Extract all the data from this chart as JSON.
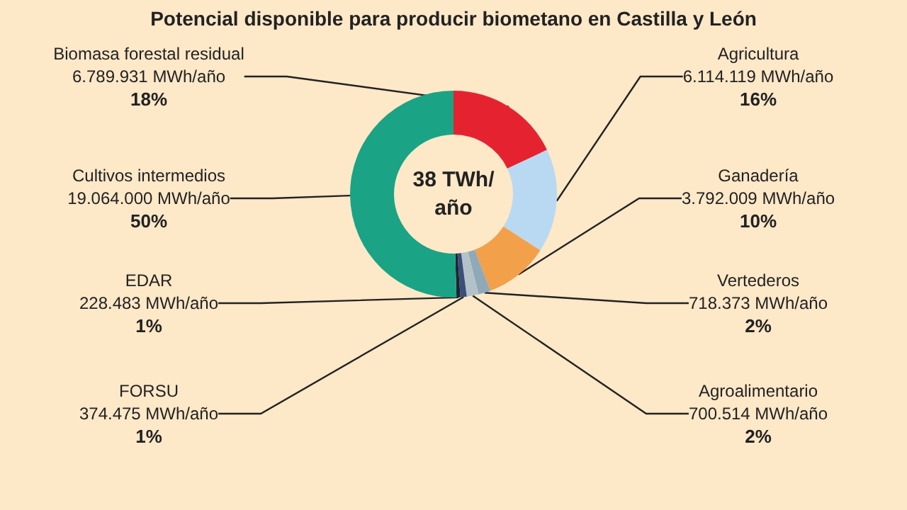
{
  "chart_data": {
    "type": "donut",
    "title": "Potencial disponible para producir biometano en Castilla y León",
    "categories": [
      "Biomasa forestal residual",
      "Agricultura",
      "Ganadería",
      "Vertederos",
      "Agroalimentario",
      "FORSU",
      "EDAR",
      "Cultivos intermedios"
    ],
    "values": [
      6789931,
      6114119,
      3792009,
      718373,
      700514,
      374475,
      228483,
      19064000
    ],
    "colors": [
      "#e52330",
      "#b9d9f2",
      "#f2a04a",
      "#8fa9b8",
      "#b3c2c8",
      "#3a4f7a",
      "#1c2630",
      "#1aa384"
    ],
    "value_labels": [
      "6.789.931 MWh/año\n18%",
      "6.114.119 MWh/año\n16%",
      "3.792.009 MWh/año\n10%",
      "718.373 MWh/año\n2%",
      "700.514 MWh/año\n2%",
      "374.475 MWh/año\n1%",
      "228.483 MWh/año\n1%",
      "19.064.000 MWh/año\n50%"
    ],
    "annotations": [
      "38 TWh/\naño"
    ]
  }
}
